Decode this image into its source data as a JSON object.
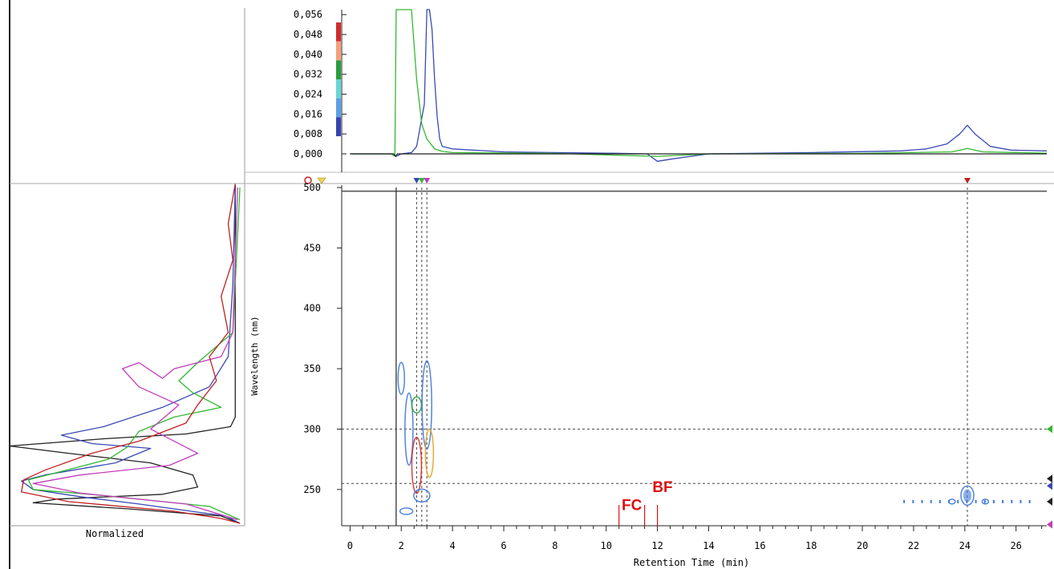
{
  "colors": {
    "blue": "#3a49b5",
    "green": "#33b833",
    "black": "#222222",
    "red": "#c21f1f",
    "magenta": "#c43bbd",
    "contour_blue": "#3f78d8",
    "annotation_red": "#dd1111"
  },
  "chart_data": [
    {
      "id": "chromatogram",
      "type": "line",
      "ylabel": "",
      "ylim": [
        0.0,
        0.058
      ],
      "xlim": [
        -0.2,
        27.2
      ],
      "y_ticks": [
        "0,000",
        "0,008",
        "0,016",
        "0,024",
        "0,032",
        "0,040",
        "0,048",
        "0,056"
      ],
      "y_tick_values": [
        0.0,
        0.008,
        0.016,
        0.024,
        0.032,
        0.04,
        0.048,
        0.056
      ],
      "legend_color_bar": [
        "#d42a2a",
        "#f4a07a",
        "#2a9d3a",
        "#66d6d6",
        "#5aa0e8",
        "#3444b0"
      ],
      "series": [
        {
          "color_key": "blue",
          "x": [
            0,
            1.6,
            1.8,
            2.0,
            2.4,
            2.6,
            2.9,
            3.0,
            3.1,
            3.2,
            3.3,
            3.4,
            3.5,
            3.6,
            4.0,
            6,
            8,
            10,
            11.6,
            12.0,
            12.6,
            14,
            18,
            21.5,
            22.5,
            23.3,
            23.8,
            24.1,
            24.4,
            25.0,
            25.8,
            27.2
          ],
          "y": [
            0,
            0,
            -0.001,
            0.0,
            0.0005,
            0.003,
            0.02,
            0.058,
            0.058,
            0.05,
            0.03,
            0.015,
            0.006,
            0.003,
            0.002,
            0.0008,
            0.0005,
            0.0003,
            0.0,
            -0.003,
            -0.002,
            0,
            0.0005,
            0.0012,
            0.002,
            0.004,
            0.008,
            0.0115,
            0.008,
            0.003,
            0.0015,
            0.0012
          ]
        },
        {
          "color_key": "green",
          "x": [
            0,
            1.6,
            1.75,
            1.8,
            1.9,
            2.0,
            2.4,
            2.6,
            2.8,
            3.0,
            3.3,
            3.6,
            4.0,
            8,
            12,
            14,
            20,
            23.5,
            24.1,
            24.7,
            27.2
          ],
          "y": [
            0,
            0,
            -0.001,
            0.058,
            0.058,
            0.058,
            0.058,
            0.03,
            0.012,
            0.006,
            0.002,
            0.001,
            0.0005,
            0.0002,
            -0.001,
            0.0,
            0.0002,
            0.0008,
            0.0022,
            0.0008,
            0.0003
          ]
        },
        {
          "color_key": "black",
          "x": [
            0,
            1.7,
            1.78,
            1.85,
            27.2
          ],
          "y": [
            0,
            0,
            -0.001,
            0.0,
            0.0
          ]
        }
      ]
    },
    {
      "id": "contour",
      "type": "heatmap",
      "xlabel": "Retention Time (min)",
      "ylabel": "Wavelength (nm)",
      "xlim": [
        -0.2,
        27.2
      ],
      "ylim": [
        220,
        502
      ],
      "x_ticks": [
        "0",
        "2",
        "4",
        "6",
        "8",
        "10",
        "12",
        "14",
        "16",
        "18",
        "20",
        "22",
        "24",
        "26"
      ],
      "x_tick_values": [
        0,
        2,
        4,
        6,
        8,
        10,
        12,
        14,
        16,
        18,
        20,
        22,
        24,
        26
      ],
      "y_ticks": [
        "250",
        "300",
        "350",
        "400",
        "450",
        "500"
      ],
      "y_tick_values": [
        250,
        300,
        350,
        400,
        450,
        500
      ],
      "guide_lines": {
        "vertical": [
          1.8,
          2.6,
          2.8,
          3.0,
          24.1
        ],
        "horizontal": [
          255,
          300
        ]
      },
      "top_markers": [
        {
          "x": 2.6,
          "color_key": "blue"
        },
        {
          "x": 2.8,
          "color_key": "green"
        },
        {
          "x": 3.0,
          "color_key": "magenta"
        },
        {
          "x": 24.1,
          "color_key": "red"
        }
      ],
      "right_markers": [
        {
          "y": 300,
          "color_key": "green"
        },
        {
          "y": 259,
          "color_key": "black"
        },
        {
          "y": 253,
          "color_key": "blue"
        },
        {
          "y": 240,
          "color_key": "black"
        },
        {
          "y": 221,
          "color_key": "magenta"
        }
      ],
      "annotations": [
        {
          "text": "FC",
          "x": 11.0,
          "y": 233,
          "marks": [
            10.5,
            11.5
          ]
        },
        {
          "text": "BF",
          "x": 12.2,
          "y": 248,
          "marks": [
            12.0
          ]
        }
      ]
    },
    {
      "id": "spectra",
      "type": "line",
      "xlabel": "Normalized",
      "ylim": [
        220,
        502
      ],
      "series": [
        {
          "color_key": "black",
          "points": [
            [
              0.96,
              502
            ],
            [
              0.96,
              310
            ],
            [
              0.94,
              302
            ],
            [
              0.75,
              296
            ],
            [
              0.4,
              292
            ],
            [
              0.0,
              286
            ],
            [
              0.25,
              280
            ],
            [
              0.6,
              272
            ],
            [
              0.78,
              262
            ],
            [
              0.8,
              252
            ],
            [
              0.65,
              246
            ],
            [
              0.2,
              242
            ],
            [
              0.1,
              239
            ],
            [
              0.5,
              234
            ],
            [
              0.9,
              228
            ],
            [
              0.98,
              222
            ]
          ]
        },
        {
          "color_key": "blue",
          "points": [
            [
              0.96,
              502
            ],
            [
              0.95,
              420
            ],
            [
              0.93,
              360
            ],
            [
              0.85,
              335
            ],
            [
              0.65,
              318
            ],
            [
              0.4,
              302
            ],
            [
              0.22,
              295
            ],
            [
              0.35,
              288
            ],
            [
              0.6,
              284
            ],
            [
              0.45,
              272
            ],
            [
              0.15,
              262
            ],
            [
              0.05,
              257
            ],
            [
              0.1,
              250
            ],
            [
              0.3,
              244
            ],
            [
              0.55,
              238
            ],
            [
              0.92,
              228
            ],
            [
              0.98,
              222
            ]
          ]
        },
        {
          "color_key": "green",
          "points": [
            [
              0.98,
              500
            ],
            [
              0.95,
              380
            ],
            [
              0.8,
              355
            ],
            [
              0.72,
              340
            ],
            [
              0.78,
              330
            ],
            [
              0.9,
              318
            ],
            [
              0.7,
              310
            ],
            [
              0.55,
              298
            ],
            [
              0.5,
              285
            ],
            [
              0.42,
              275
            ],
            [
              0.2,
              264
            ],
            [
              0.08,
              258
            ],
            [
              0.1,
              250
            ],
            [
              0.4,
              245
            ],
            [
              0.85,
              236
            ],
            [
              0.98,
              225
            ]
          ]
        },
        {
          "color_key": "magenta",
          "points": [
            [
              0.97,
              500
            ],
            [
              0.95,
              380
            ],
            [
              0.9,
              360
            ],
            [
              0.7,
              350
            ],
            [
              0.65,
              342
            ],
            [
              0.55,
              355
            ],
            [
              0.48,
              350
            ],
            [
              0.55,
              335
            ],
            [
              0.72,
              320
            ],
            [
              0.6,
              300
            ],
            [
              0.8,
              280
            ],
            [
              0.68,
              270
            ],
            [
              0.3,
              262
            ],
            [
              0.1,
              255
            ],
            [
              0.3,
              247
            ],
            [
              0.75,
              238
            ],
            [
              0.97,
              225
            ]
          ]
        },
        {
          "color_key": "red",
          "points": [
            [
              0.96,
              503
            ],
            [
              0.93,
              470
            ],
            [
              0.95,
              440
            ],
            [
              0.9,
              410
            ],
            [
              0.93,
              380
            ],
            [
              0.85,
              360
            ],
            [
              0.88,
              340
            ],
            [
              0.8,
              320
            ],
            [
              0.75,
              305
            ],
            [
              0.55,
              290
            ],
            [
              0.35,
              280
            ],
            [
              0.15,
              266
            ],
            [
              0.06,
              258
            ],
            [
              0.05,
              248
            ],
            [
              0.25,
              240
            ],
            [
              0.7,
              232
            ],
            [
              0.9,
              226
            ],
            [
              0.98,
              222
            ]
          ]
        }
      ]
    }
  ]
}
